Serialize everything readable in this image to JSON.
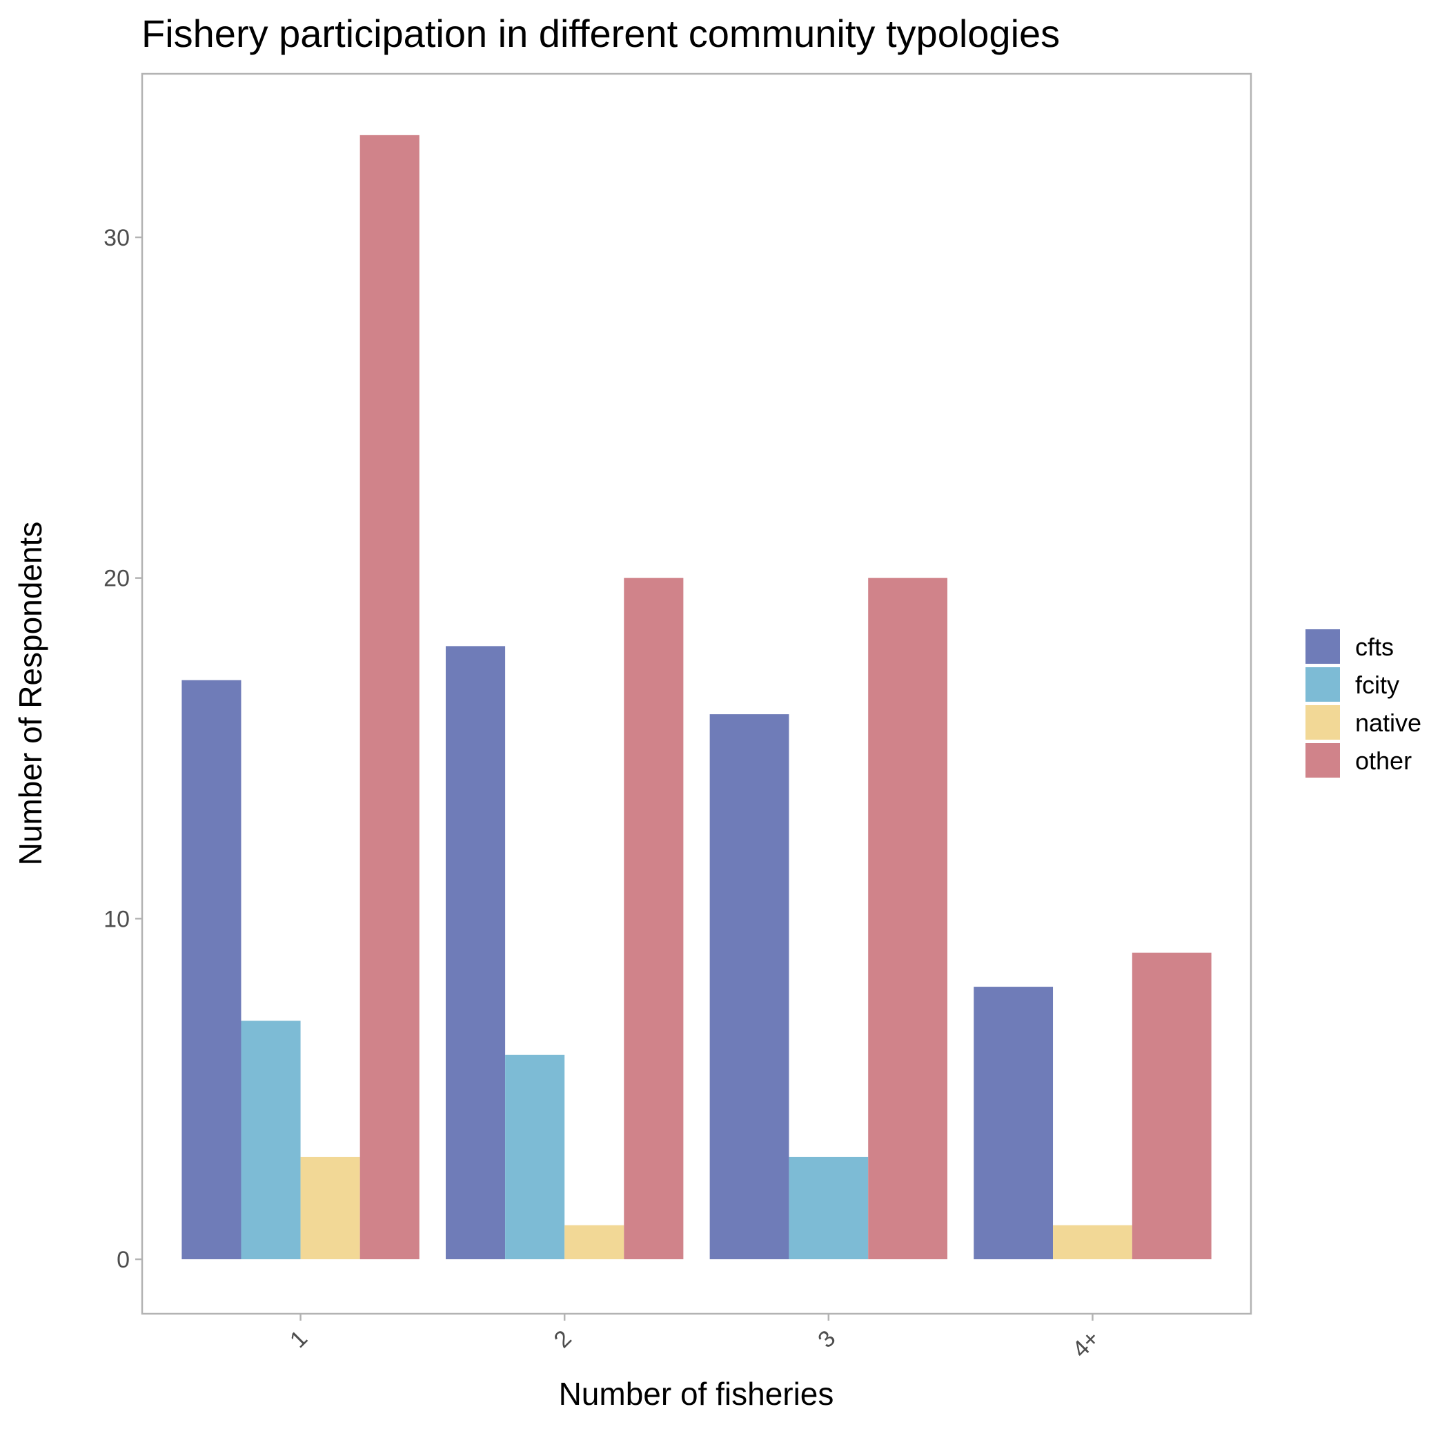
{
  "chart_data": {
    "type": "bar",
    "title": "Fishery participation in different community typologies",
    "xlabel": "Number of fisheries",
    "ylabel": "Number of Respondents",
    "categories": [
      "1",
      "2",
      "3",
      "4+"
    ],
    "yticks": [
      0,
      10,
      20,
      30
    ],
    "ylim": [
      -1.6,
      34.8
    ],
    "grid": false,
    "legend_position": "right",
    "series": [
      {
        "name": "cfts",
        "color": "#6f7cb8",
        "values": [
          17,
          18,
          16,
          8
        ]
      },
      {
        "name": "fcity",
        "color": "#7dbbd5",
        "values": [
          7,
          6,
          3,
          0
        ]
      },
      {
        "name": "native",
        "color": "#f2d896",
        "values": [
          3,
          1,
          0,
          1
        ]
      },
      {
        "name": "other",
        "color": "#d0838a",
        "values": [
          33,
          20,
          20,
          9
        ]
      }
    ]
  }
}
